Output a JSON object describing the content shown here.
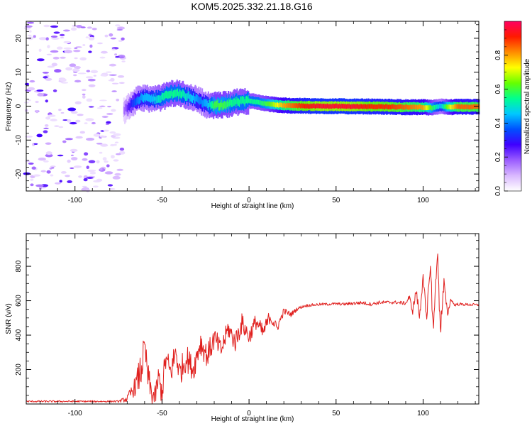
{
  "title": "KOM5.2025.332.21.18.G16",
  "chart_data": [
    {
      "type": "heatmap",
      "name": "spectrogram",
      "xlabel": "Height of straight line (km)",
      "ylabel": "Frequency (Hz)",
      "xlim": [
        -128,
        132
      ],
      "ylim": [
        -25,
        25
      ],
      "xticks": [
        -100,
        -50,
        0,
        50,
        100
      ],
      "yticks": [
        -20,
        -10,
        0,
        10,
        20
      ],
      "colorbar": {
        "label": "Normalized spectral amplitude",
        "range": [
          0,
          1
        ],
        "ticks": [
          0.0,
          0.2,
          0.4,
          0.6,
          0.8
        ],
        "colors": [
          "#ffffff",
          "#d9b8ff",
          "#9a5cff",
          "#3f00ff",
          "#0050ff",
          "#00c8ff",
          "#00ff90",
          "#66ff00",
          "#ffff00",
          "#ff8c00",
          "#ff1a00",
          "#ff0060"
        ]
      },
      "ridge": {
        "x": [
          -72,
          -68,
          -64,
          -60,
          -56,
          -52,
          -48,
          -44,
          -40,
          -36,
          -32,
          -28,
          -24,
          -20,
          -15,
          -10,
          -5,
          0,
          5,
          10,
          15,
          20,
          30,
          40,
          50,
          60,
          70,
          80,
          90,
          100,
          105,
          110,
          115,
          120,
          125,
          132
        ],
        "freq": [
          -1.5,
          0.5,
          2.0,
          2.5,
          2.0,
          2.3,
          3.0,
          3.8,
          3.8,
          3.0,
          2.5,
          1.5,
          0.3,
          0.2,
          0.4,
          0.9,
          1.3,
          1.6,
          1.2,
          0.7,
          0.4,
          0.2,
          0.1,
          0.0,
          0.0,
          -0.1,
          -0.1,
          -0.2,
          -0.3,
          -0.3,
          -0.5,
          0.0,
          -0.3,
          -0.2,
          -0.2,
          -0.2
        ],
        "amplitude": [
          0.15,
          0.3,
          0.4,
          0.45,
          0.45,
          0.5,
          0.55,
          0.55,
          0.55,
          0.5,
          0.45,
          0.4,
          0.45,
          0.6,
          0.6,
          0.55,
          0.55,
          0.55,
          0.55,
          0.6,
          0.7,
          0.8,
          0.9,
          0.95,
          0.95,
          0.95,
          0.9,
          0.9,
          0.85,
          0.8,
          0.6,
          0.45,
          0.7,
          0.85,
          0.85,
          0.85
        ]
      },
      "noise_region_x": [
        -128,
        -72
      ]
    },
    {
      "type": "line",
      "name": "snr",
      "xlabel": "Height of straight line (km)",
      "ylabel": "SNR (v/v)",
      "xlim": [
        -128,
        132
      ],
      "ylim": [
        0,
        990
      ],
      "xticks": [
        -100,
        -50,
        0,
        50,
        100
      ],
      "yticks": [
        200,
        400,
        600,
        800
      ],
      "color": "#e0201e",
      "series": [
        {
          "name": "SNR",
          "x": [
            -128,
            -110,
            -90,
            -75,
            -70,
            -65,
            -62,
            -60,
            -58,
            -56,
            -54,
            -52,
            -50,
            -48,
            -45,
            -42,
            -40,
            -36,
            -32,
            -28,
            -24,
            -20,
            -16,
            -12,
            -8,
            -4,
            0,
            4,
            8,
            12,
            16,
            20,
            24,
            28,
            32,
            36,
            40,
            45,
            50,
            55,
            60,
            65,
            70,
            75,
            80,
            85,
            90,
            92,
            94,
            96,
            98,
            100,
            102,
            104,
            106,
            108,
            110,
            112,
            114,
            116,
            118,
            120,
            125,
            132
          ],
          "y": [
            15,
            15,
            15,
            15,
            30,
            110,
            200,
            340,
            150,
            60,
            40,
            150,
            60,
            260,
            180,
            310,
            180,
            270,
            200,
            360,
            280,
            380,
            310,
            440,
            360,
            470,
            390,
            480,
            410,
            510,
            440,
            540,
            520,
            555,
            570,
            575,
            578,
            580,
            582,
            580,
            585,
            588,
            580,
            590,
            590,
            590,
            585,
            620,
            540,
            660,
            500,
            760,
            460,
            820,
            420,
            900,
            440,
            700,
            520,
            610,
            575,
            580,
            578,
            575
          ],
          "envelope": [
            5,
            5,
            5,
            5,
            20,
            60,
            120,
            60,
            90,
            70,
            60,
            80,
            70,
            90,
            80,
            90,
            80,
            80,
            70,
            80,
            70,
            70,
            60,
            60,
            60,
            60,
            50,
            50,
            50,
            40,
            30,
            20,
            15,
            10,
            8,
            8,
            8,
            8,
            8,
            8,
            10,
            10,
            10,
            10,
            10,
            10,
            10,
            20,
            20,
            30,
            30,
            40,
            40,
            60,
            60,
            80,
            60,
            40,
            20,
            10,
            8,
            8,
            8,
            8
          ]
        }
      ]
    }
  ]
}
